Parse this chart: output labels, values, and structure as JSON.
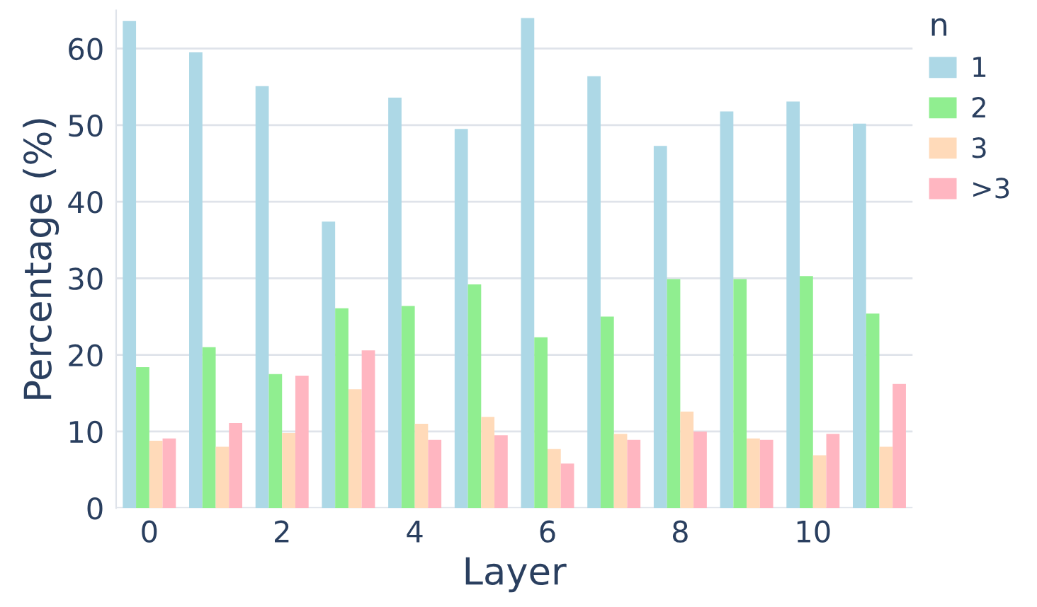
{
  "chart_data": {
    "type": "bar",
    "xlabel": "Layer",
    "ylabel": "Percentage (%)",
    "legend_title": "n",
    "x": [
      0,
      1,
      2,
      3,
      4,
      5,
      6,
      7,
      8,
      9,
      10,
      11
    ],
    "series": [
      {
        "name": "1",
        "color": "#add8e6",
        "values": [
          63.6,
          59.5,
          55.1,
          37.4,
          53.6,
          49.5,
          64.0,
          56.4,
          47.3,
          51.8,
          53.1,
          50.2
        ]
      },
      {
        "name": "2",
        "color": "#90ee90",
        "values": [
          18.4,
          21.0,
          17.5,
          26.1,
          26.4,
          29.2,
          22.3,
          25.0,
          29.9,
          29.9,
          30.3,
          25.4
        ]
      },
      {
        "name": "3",
        "color": "#ffdab9",
        "values": [
          8.8,
          8.0,
          9.8,
          15.5,
          11.0,
          11.9,
          7.7,
          9.7,
          12.6,
          9.1,
          6.9,
          8.0
        ]
      },
      {
        "name": ">3",
        "color": "#ffb6c1",
        "values": [
          9.1,
          11.1,
          17.3,
          20.6,
          8.9,
          9.5,
          5.8,
          8.9,
          10.0,
          8.9,
          9.7,
          16.2
        ]
      }
    ],
    "xlim": [
      -0.5,
      11.5
    ],
    "xticks": [
      0,
      2,
      4,
      6,
      8,
      10
    ],
    "ylim": [
      0,
      65
    ],
    "yticks": [
      0,
      10,
      20,
      30,
      40,
      50,
      60
    ],
    "grid": "y",
    "legend": "top right"
  }
}
